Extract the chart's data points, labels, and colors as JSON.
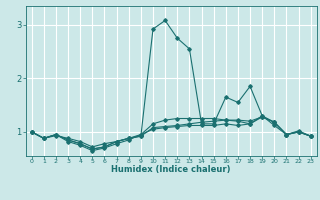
{
  "title": "",
  "xlabel": "Humidex (Indice chaleur)",
  "ylabel": "",
  "bg_color": "#cce8e8",
  "grid_color": "#ffffff",
  "line_color": "#1a7070",
  "xlim": [
    -0.5,
    23.5
  ],
  "ylim": [
    0.55,
    3.35
  ],
  "yticks": [
    1,
    2,
    3
  ],
  "xticks": [
    0,
    1,
    2,
    3,
    4,
    5,
    6,
    7,
    8,
    9,
    10,
    11,
    12,
    13,
    14,
    15,
    16,
    17,
    18,
    19,
    20,
    21,
    22,
    23
  ],
  "series": [
    [
      1.0,
      0.88,
      0.93,
      0.88,
      0.82,
      0.72,
      0.78,
      0.82,
      0.88,
      0.92,
      2.92,
      3.08,
      2.75,
      2.55,
      1.15,
      1.15,
      1.65,
      1.55,
      1.85,
      1.3,
      1.18,
      0.95,
      1.02,
      0.92
    ],
    [
      1.0,
      0.88,
      0.95,
      0.85,
      0.78,
      0.68,
      0.72,
      0.82,
      0.88,
      0.92,
      1.08,
      1.1,
      1.12,
      1.15,
      1.18,
      1.2,
      1.22,
      1.2,
      1.15,
      1.28,
      1.18,
      0.95,
      1.0,
      0.92
    ],
    [
      1.0,
      0.88,
      0.95,
      0.85,
      0.78,
      0.68,
      0.72,
      0.82,
      0.88,
      0.95,
      1.15,
      1.22,
      1.25,
      1.25,
      1.25,
      1.25,
      1.22,
      1.22,
      1.2,
      1.28,
      1.18,
      0.95,
      1.0,
      0.92
    ],
    [
      1.0,
      0.88,
      0.95,
      0.82,
      0.75,
      0.65,
      0.7,
      0.78,
      0.85,
      0.95,
      1.05,
      1.08,
      1.1,
      1.12,
      1.12,
      1.12,
      1.15,
      1.12,
      1.15,
      1.3,
      1.12,
      0.95,
      1.0,
      0.92
    ]
  ],
  "figsize": [
    3.2,
    2.0
  ],
  "dpi": 100
}
